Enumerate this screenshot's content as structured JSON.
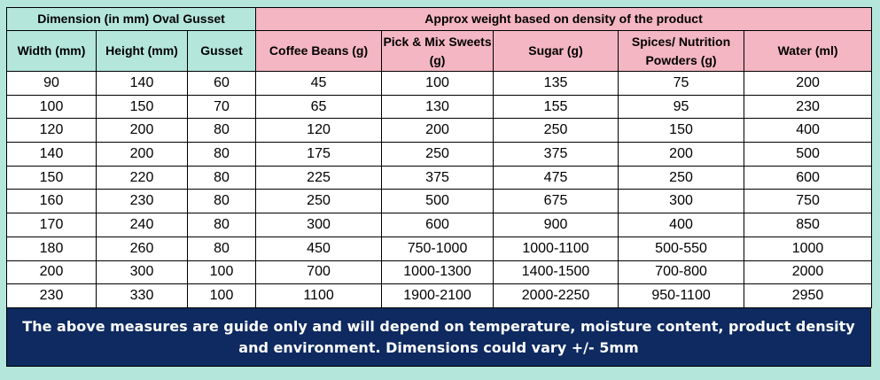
{
  "headers": {
    "left_group": "Dimension (in mm) Oval Gusset",
    "right_group": "Approx weight based on density of the product",
    "columns": [
      "Width (mm)",
      "Height (mm)",
      "Gusset",
      "Coffee Beans (g)",
      "Pick & Mix Sweets (g)",
      "Sugar (g)",
      "Spices/ Nutrition Powders (g)",
      "Water (ml)"
    ]
  },
  "rows": [
    [
      "90",
      "140",
      "60",
      "45",
      "100",
      "135",
      "75",
      "200"
    ],
    [
      "100",
      "150",
      "70",
      "65",
      "130",
      "155",
      "95",
      "230"
    ],
    [
      "120",
      "200",
      "80",
      "120",
      "200",
      "250",
      "150",
      "400"
    ],
    [
      "140",
      "200",
      "80",
      "175",
      "250",
      "375",
      "200",
      "500"
    ],
    [
      "150",
      "220",
      "80",
      "225",
      "375",
      "475",
      "250",
      "600"
    ],
    [
      "160",
      "230",
      "80",
      "250",
      "500",
      "675",
      "300",
      "750"
    ],
    [
      "170",
      "240",
      "80",
      "300",
      "600",
      "900",
      "400",
      "850"
    ],
    [
      "180",
      "260",
      "80",
      "450",
      "750-1000",
      "1000-1100",
      "500-550",
      "1000"
    ],
    [
      "200",
      "300",
      "100",
      "700",
      "1000-1300",
      "1400-1500",
      "700-800",
      "2000"
    ],
    [
      "230",
      "330",
      "100",
      "1100",
      "1900-2100",
      "2000-2250",
      "950-1100",
      "2950"
    ]
  ],
  "footer": "The above measures are guide only and will depend on temperature, moisture content, product density and environment. Dimensions could vary +/- 5mm",
  "colors": {
    "left_header_bg": "#b4e6dc",
    "right_header_bg": "#f4b6c2",
    "footer_bg": "#0e2a60",
    "footer_text": "#ffffff"
  }
}
